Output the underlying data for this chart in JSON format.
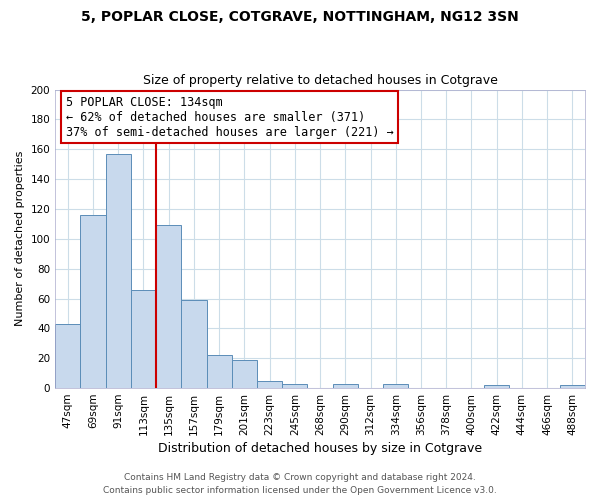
{
  "title_line1": "5, POPLAR CLOSE, COTGRAVE, NOTTINGHAM, NG12 3SN",
  "title_line2": "Size of property relative to detached houses in Cotgrave",
  "xlabel": "Distribution of detached houses by size in Cotgrave",
  "ylabel": "Number of detached properties",
  "bar_labels": [
    "47sqm",
    "69sqm",
    "91sqm",
    "113sqm",
    "135sqm",
    "157sqm",
    "179sqm",
    "201sqm",
    "223sqm",
    "245sqm",
    "268sqm",
    "290sqm",
    "312sqm",
    "334sqm",
    "356sqm",
    "378sqm",
    "400sqm",
    "422sqm",
    "444sqm",
    "466sqm",
    "488sqm"
  ],
  "bar_heights": [
    43,
    116,
    157,
    66,
    109,
    59,
    22,
    19,
    5,
    3,
    0,
    3,
    0,
    3,
    0,
    0,
    0,
    2,
    0,
    0,
    2
  ],
  "bar_color": "#c8d9ed",
  "bar_edgecolor": "#5b8db8",
  "vline_color": "#cc0000",
  "annotation_text": "5 POPLAR CLOSE: 134sqm\n← 62% of detached houses are smaller (371)\n37% of semi-detached houses are larger (221) →",
  "annotation_box_edgecolor": "#cc0000",
  "annotation_box_facecolor": "#ffffff",
  "ylim": [
    0,
    200
  ],
  "yticks": [
    0,
    20,
    40,
    60,
    80,
    100,
    120,
    140,
    160,
    180,
    200
  ],
  "footer_line1": "Contains HM Land Registry data © Crown copyright and database right 2024.",
  "footer_line2": "Contains public sector information licensed under the Open Government Licence v3.0.",
  "bg_color": "#ffffff",
  "grid_color": "#ccdde8",
  "title1_fontsize": 10,
  "title2_fontsize": 9,
  "xlabel_fontsize": 9,
  "ylabel_fontsize": 8,
  "tick_fontsize": 7.5,
  "annotation_fontsize": 8.5,
  "footer_fontsize": 6.5
}
